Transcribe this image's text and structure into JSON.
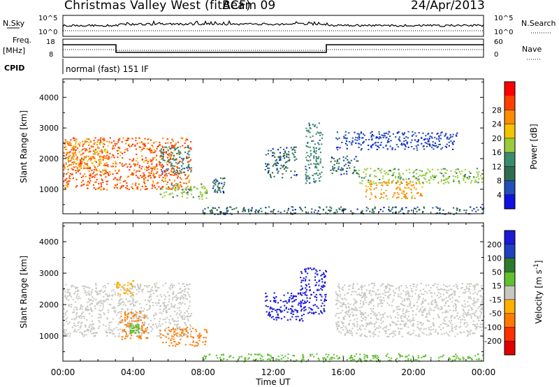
{
  "header": {
    "station": "Christmas Valley West (fitACF)",
    "beam": "Beam 09",
    "date": "24/Apr/2013"
  },
  "top_panels": {
    "nsky_label": "N.Sky",
    "nsky_ticks": [
      "10^5",
      "10^0"
    ],
    "nsearch_label": "N.Search",
    "nsearch_ticks": [
      "10^5",
      "10^0"
    ],
    "freq_label": [
      "Freq.",
      "[MHz]"
    ],
    "freq_ticks": [
      "18",
      "8"
    ],
    "nave_label": "Nave",
    "nave_ticks": [
      "60",
      "0"
    ],
    "cpid_label": "CPID",
    "cpid_text": "normal (fast) 151 IF"
  },
  "colors": {
    "power_scale": [
      "#1010e0",
      "#2050b8",
      "#2e6e4e",
      "#3a8a70",
      "#9acb3c",
      "#f5c400",
      "#ff8c00",
      "#ff4000",
      "#ff0000"
    ],
    "velocity_scale": [
      "#1a1ad8",
      "#2040c0",
      "#2d7a2d",
      "#60c030",
      "#c8c8c0",
      "#ffb000",
      "#ff7a00",
      "#ff3000",
      "#e00000"
    ]
  },
  "chart_data": [
    {
      "type": "heatmap",
      "panel": "power",
      "xlabel": "",
      "ylabel": "Slant Range [km]",
      "x_ticks": [
        "00:00",
        "04:00",
        "08:00",
        "12:00",
        "16:00",
        "20:00",
        "00:00"
      ],
      "xlim_hours": [
        0,
        24
      ],
      "y_ticks": [
        1000,
        2000,
        3000,
        4000
      ],
      "ylim": [
        200,
        4600
      ],
      "colorbar_label": "Power [dB]",
      "colorbar_ticks": [
        4,
        8,
        12,
        16,
        20,
        24,
        28
      ],
      "regions": [
        {
          "t": [
            0,
            7.3
          ],
          "r": [
            1000,
            2700
          ],
          "level": 28
        },
        {
          "t": [
            0,
            2.5
          ],
          "r": [
            1600,
            2600
          ],
          "level": 24
        },
        {
          "t": [
            5.5,
            7.3
          ],
          "r": [
            1500,
            2400
          ],
          "level": 12
        },
        {
          "t": [
            5.5,
            8.2
          ],
          "r": [
            700,
            1200
          ],
          "level": 16
        },
        {
          "t": [
            8.5,
            9.2
          ],
          "r": [
            900,
            1400
          ],
          "level": 8
        },
        {
          "t": [
            11.5,
            13.3
          ],
          "r": [
            1400,
            2400
          ],
          "level": 8
        },
        {
          "t": [
            13.8,
            14.8
          ],
          "r": [
            1200,
            3200
          ],
          "level": 12
        },
        {
          "t": [
            15.2,
            16.8
          ],
          "r": [
            1500,
            2100
          ],
          "level": 8
        },
        {
          "t": [
            16.8,
            24
          ],
          "r": [
            1200,
            1700
          ],
          "level": 16
        },
        {
          "t": [
            17.2,
            20.5
          ],
          "r": [
            700,
            1300
          ],
          "level": 24
        },
        {
          "t": [
            15.5,
            22.5
          ],
          "r": [
            2300,
            2900
          ],
          "level": 4
        },
        {
          "t": [
            8,
            24
          ],
          "r": [
            200,
            450
          ],
          "level": 8
        }
      ]
    },
    {
      "type": "heatmap",
      "panel": "velocity",
      "xlabel": "Time UT",
      "ylabel": "Slant Range [km]",
      "x_ticks": [
        "00:00",
        "04:00",
        "08:00",
        "12:00",
        "16:00",
        "20:00",
        "00:00"
      ],
      "xlim_hours": [
        0,
        24
      ],
      "y_ticks": [
        1000,
        2000,
        3000,
        4000
      ],
      "ylim": [
        200,
        4600
      ],
      "colorbar_label": "Velocity [m s^-1]",
      "colorbar_ticks": [
        200,
        100,
        50,
        15,
        -15,
        -50,
        -100,
        -200
      ],
      "regions": [
        {
          "t": [
            0,
            7.3
          ],
          "r": [
            1000,
            2700
          ],
          "level": 0
        },
        {
          "t": [
            3.2,
            4.8
          ],
          "r": [
            900,
            1800
          ],
          "level": -100
        },
        {
          "t": [
            3.8,
            4.3
          ],
          "r": [
            1100,
            1400
          ],
          "level": 50
        },
        {
          "t": [
            5.5,
            8.2
          ],
          "r": [
            700,
            1300
          ],
          "level": -100
        },
        {
          "t": [
            3.0,
            4.0
          ],
          "r": [
            2300,
            2800
          ],
          "level": -50
        },
        {
          "t": [
            11.5,
            13.8
          ],
          "r": [
            1500,
            2400
          ],
          "level": 200
        },
        {
          "t": [
            13.5,
            15.0
          ],
          "r": [
            1700,
            3200
          ],
          "level": 200
        },
        {
          "t": [
            15.5,
            24
          ],
          "r": [
            1000,
            2700
          ],
          "level": 0
        },
        {
          "t": [
            8,
            24
          ],
          "r": [
            200,
            450
          ],
          "level": 50
        }
      ]
    }
  ],
  "footer": {
    "xlabel": "Time UT"
  }
}
